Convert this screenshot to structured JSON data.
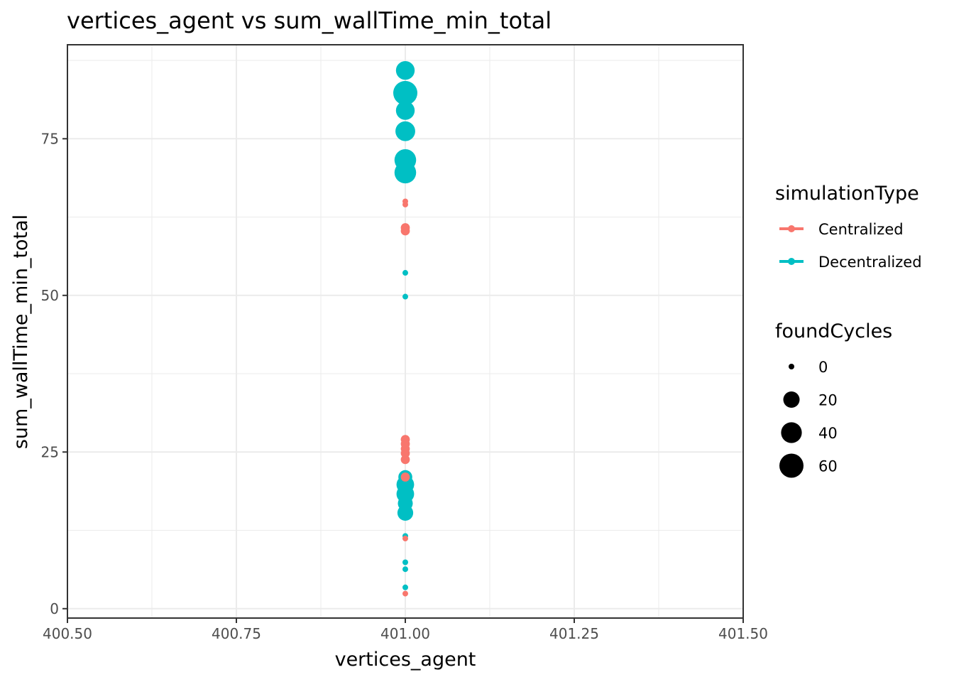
{
  "chart_data": {
    "type": "scatter",
    "title": "vertices_agent  vs  sum_wallTime_min_total",
    "xlabel": "vertices_agent",
    "ylabel": "sum_wallTime_min_total",
    "xlim": [
      400.5,
      401.5
    ],
    "ylim": [
      -1.5,
      90
    ],
    "x_ticks": [
      400.5,
      400.75,
      401.0,
      401.25,
      401.5
    ],
    "x_tick_labels": [
      "400.50",
      "400.75",
      "401.00",
      "401.25",
      "401.50"
    ],
    "y_ticks": [
      0,
      25,
      50,
      75
    ],
    "y_tick_labels": [
      "0",
      "25",
      "50",
      "75"
    ],
    "grid": true,
    "legend_position": "right",
    "colors": {
      "Centralized": "#F8766D",
      "Decentralized": "#00BFC4"
    },
    "legends": {
      "color": {
        "title": "simulationType",
        "entries": [
          "Centralized",
          "Decentralized"
        ]
      },
      "size": {
        "title": "foundCycles",
        "entries": [
          {
            "label": "0",
            "value": 0
          },
          {
            "label": "20",
            "value": 20
          },
          {
            "label": "40",
            "value": 40
          },
          {
            "label": "60",
            "value": 60
          }
        ]
      }
    },
    "series": [
      {
        "name": "Centralized",
        "points": [
          {
            "x": 401.0,
            "y": 64.5,
            "size": 0
          },
          {
            "x": 401.0,
            "y": 65.0,
            "size": 0
          },
          {
            "x": 401.0,
            "y": 60.3,
            "size": 2
          },
          {
            "x": 401.0,
            "y": 60.8,
            "size": 2
          },
          {
            "x": 401.0,
            "y": 27.0,
            "size": 2
          },
          {
            "x": 401.0,
            "y": 26.3,
            "size": 2
          },
          {
            "x": 401.0,
            "y": 25.5,
            "size": 2
          },
          {
            "x": 401.0,
            "y": 24.8,
            "size": 2
          },
          {
            "x": 401.0,
            "y": 23.8,
            "size": 2
          },
          {
            "x": 401.0,
            "y": 21.0,
            "size": 2
          },
          {
            "x": 401.0,
            "y": 11.2,
            "size": 0
          },
          {
            "x": 401.0,
            "y": 2.4,
            "size": 0
          }
        ]
      },
      {
        "name": "Decentralized",
        "points": [
          {
            "x": 401.0,
            "y": 85.9,
            "size": 30
          },
          {
            "x": 401.0,
            "y": 82.3,
            "size": 60
          },
          {
            "x": 401.0,
            "y": 79.5,
            "size": 30
          },
          {
            "x": 401.0,
            "y": 76.2,
            "size": 35
          },
          {
            "x": 401.0,
            "y": 71.6,
            "size": 45
          },
          {
            "x": 401.0,
            "y": 69.6,
            "size": 45
          },
          {
            "x": 401.0,
            "y": 53.6,
            "size": 0
          },
          {
            "x": 401.0,
            "y": 49.8,
            "size": 0
          },
          {
            "x": 401.0,
            "y": 21.0,
            "size": 12
          },
          {
            "x": 401.0,
            "y": 19.8,
            "size": 25
          },
          {
            "x": 401.0,
            "y": 18.3,
            "size": 25
          },
          {
            "x": 401.0,
            "y": 16.8,
            "size": 15
          },
          {
            "x": 401.0,
            "y": 15.3,
            "size": 18
          },
          {
            "x": 401.0,
            "y": 11.6,
            "size": 0
          },
          {
            "x": 401.0,
            "y": 7.4,
            "size": 0
          },
          {
            "x": 401.0,
            "y": 6.3,
            "size": 0
          },
          {
            "x": 401.0,
            "y": 3.4,
            "size": 0
          }
        ]
      }
    ]
  }
}
